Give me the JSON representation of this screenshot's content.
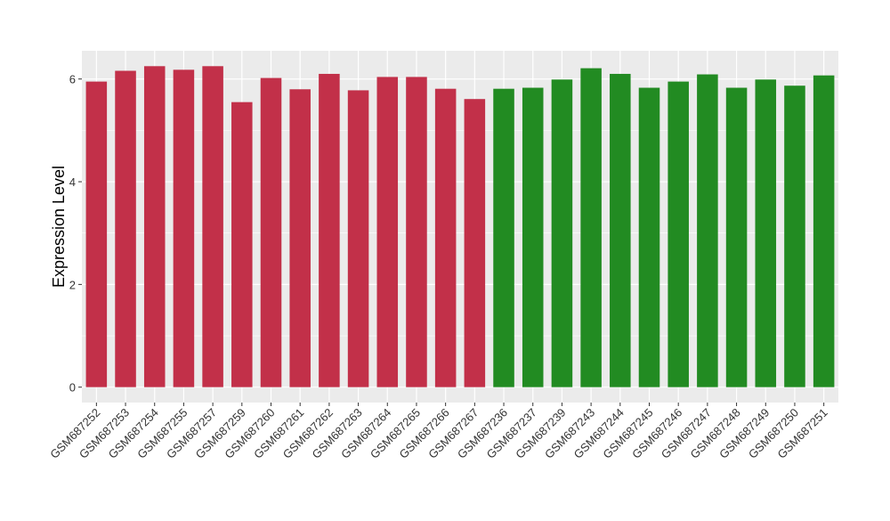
{
  "chart_data": {
    "type": "bar",
    "title": "",
    "xlabel": "",
    "ylabel": "Expression Level",
    "ylim": [
      -0.3,
      6.55
    ],
    "yticks": [
      0,
      2,
      4,
      6
    ],
    "grid": true,
    "legend": "none",
    "background_color": "#EBEBEB",
    "grid_color": "#FFFFFF",
    "categories": [
      "GSM687252",
      "GSM687253",
      "GSM687254",
      "GSM687255",
      "GSM687257",
      "GSM687259",
      "GSM687260",
      "GSM687261",
      "GSM687262",
      "GSM687263",
      "GSM687264",
      "GSM687265",
      "GSM687266",
      "GSM687267",
      "GSM687236",
      "GSM687237",
      "GSM687239",
      "GSM687243",
      "GSM687244",
      "GSM687245",
      "GSM687246",
      "GSM687247",
      "GSM687248",
      "GSM687249",
      "GSM687250",
      "GSM687251"
    ],
    "values": [
      5.95,
      6.16,
      6.25,
      6.18,
      6.25,
      5.55,
      6.02,
      5.8,
      6.1,
      5.78,
      6.04,
      6.04,
      5.81,
      5.61,
      5.81,
      5.83,
      5.99,
      6.21,
      6.1,
      5.83,
      5.95,
      6.09,
      5.83,
      5.99,
      5.87,
      6.07
    ],
    "groups": [
      {
        "color": "#C23049",
        "count": 14
      },
      {
        "color": "#228B22",
        "count": 12
      }
    ]
  }
}
